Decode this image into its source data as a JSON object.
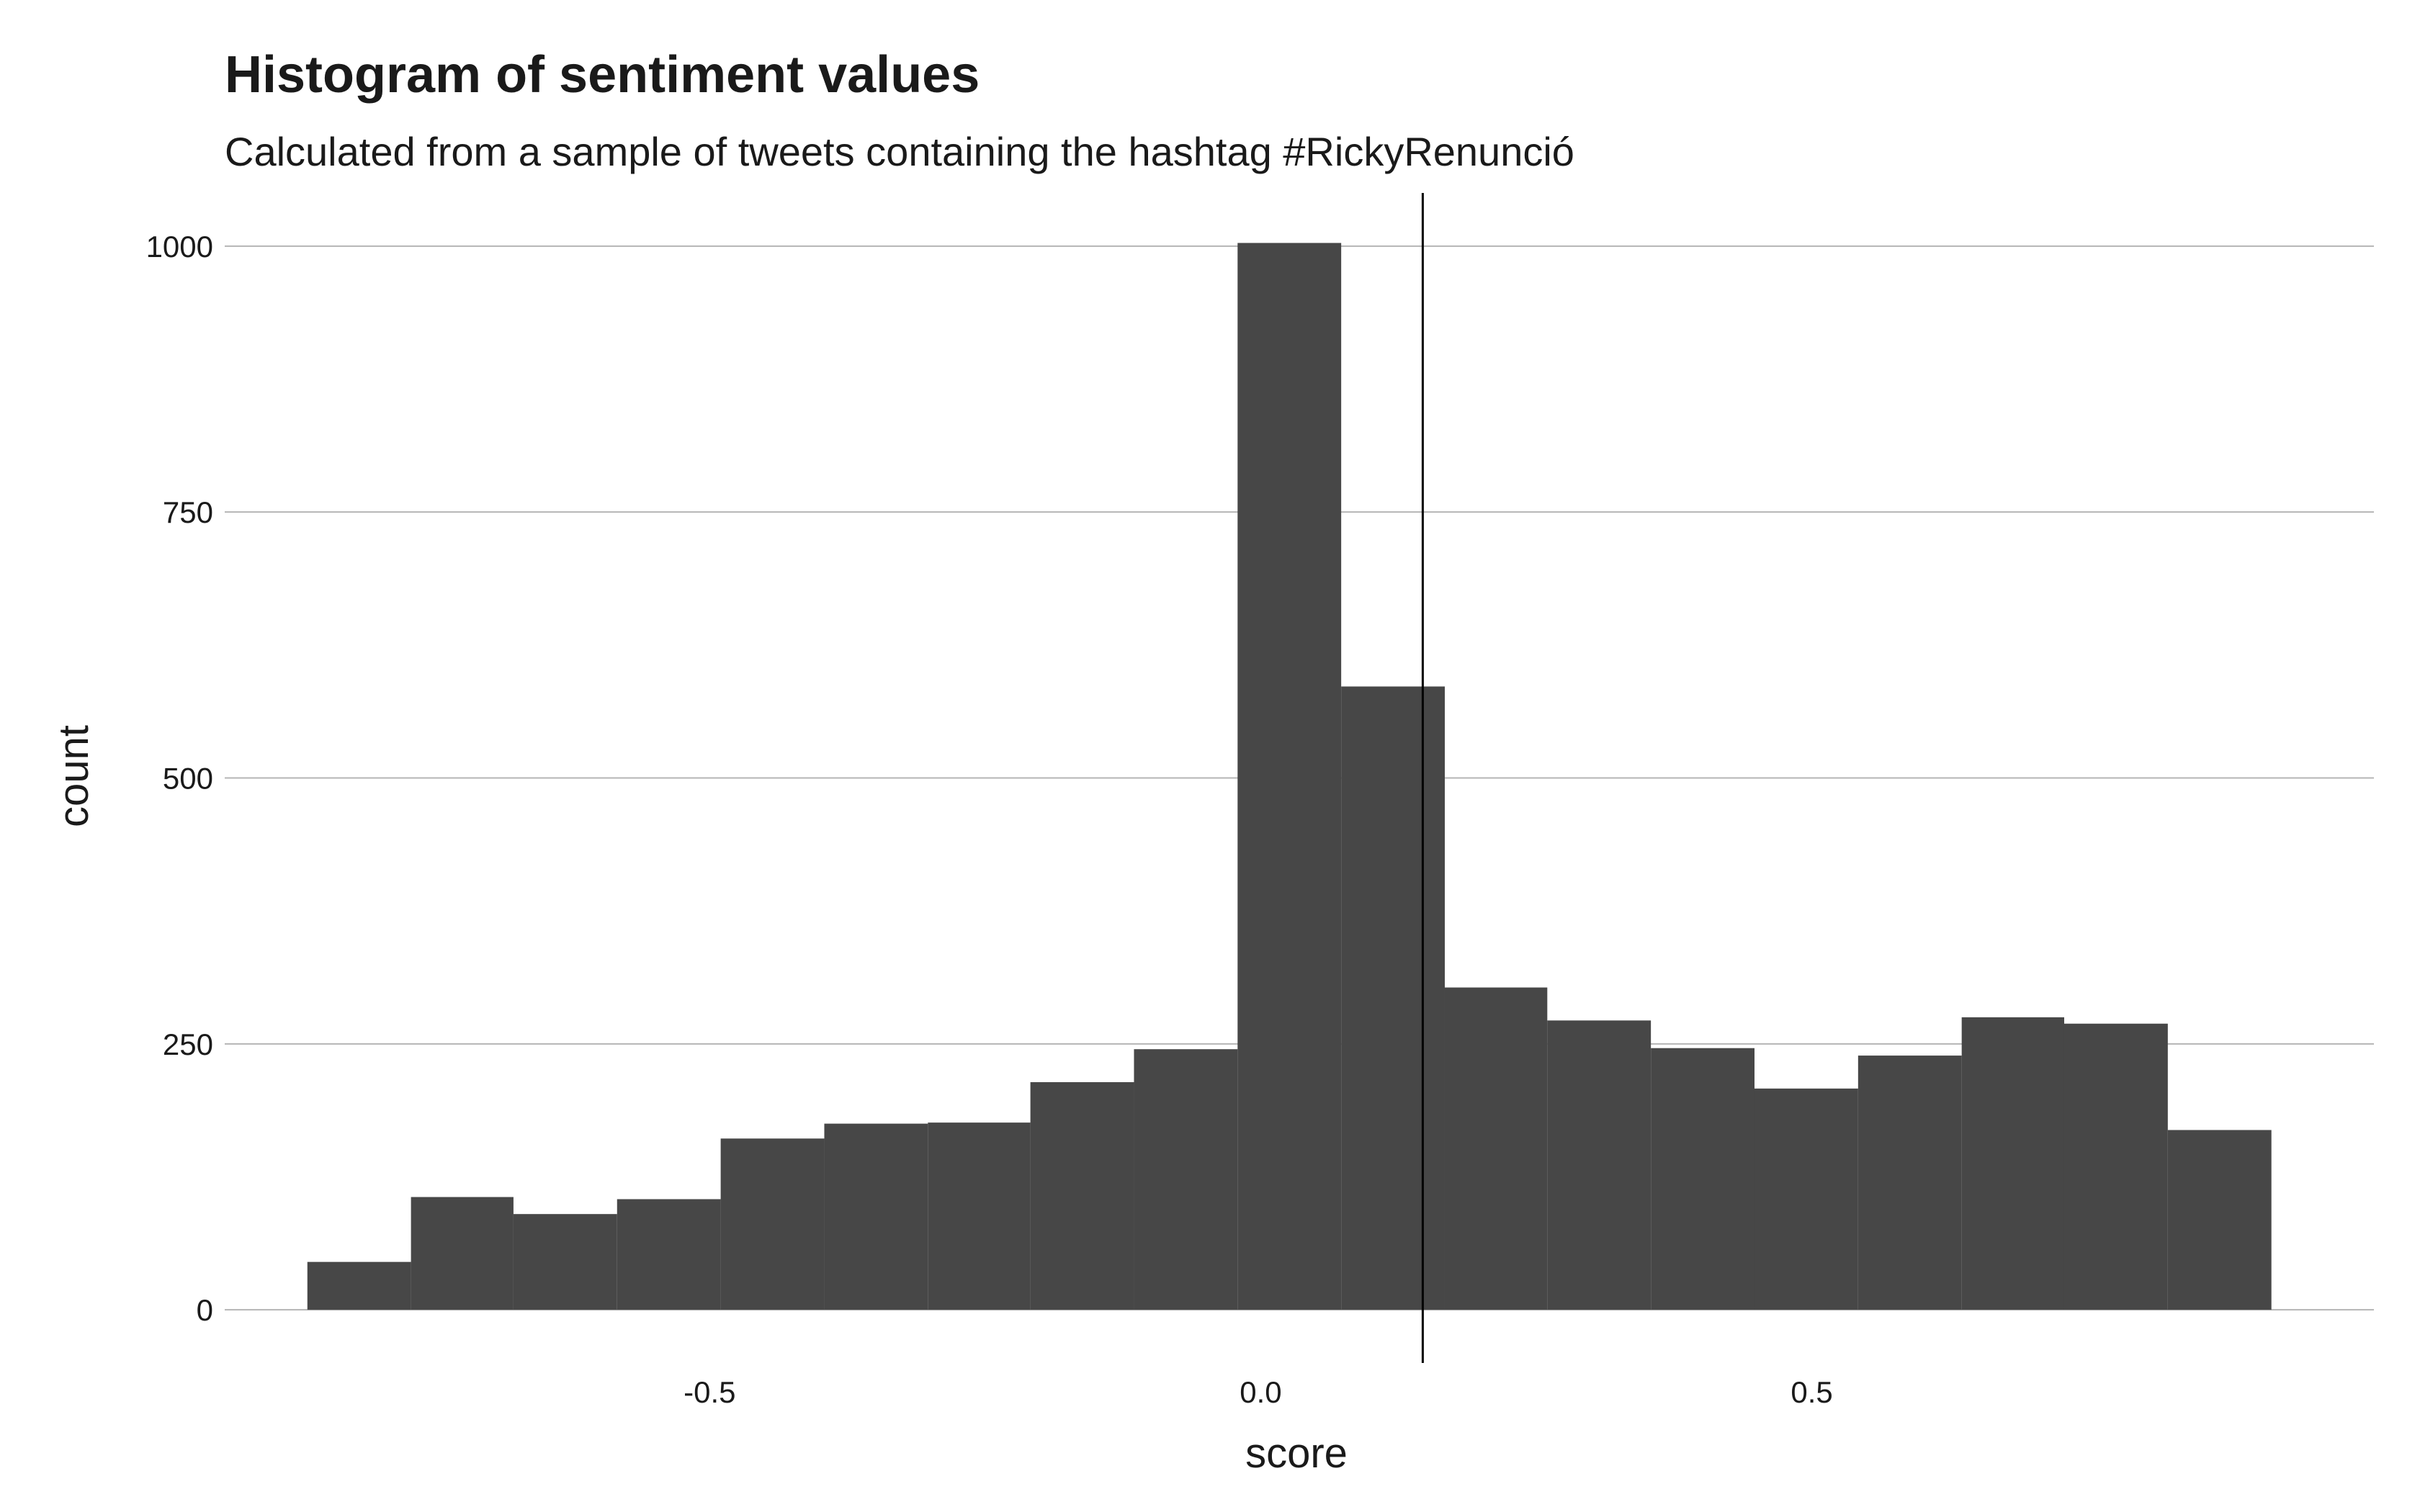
{
  "chart_data": {
    "type": "bar",
    "title": "Histogram of sentiment values",
    "subtitle": "Calculated from a sample of tweets containing the hashtag #RickyRenunció",
    "xlabel": "score",
    "ylabel": "count",
    "xlim": [
      -0.94,
      1.01
    ],
    "ylim": [
      -50,
      1050
    ],
    "x_ticks": [
      {
        "value": -0.5,
        "label": "-0.5"
      },
      {
        "value": 0.0,
        "label": "0.0"
      },
      {
        "value": 0.5,
        "label": "0.5"
      }
    ],
    "y_ticks": [
      {
        "value": 0,
        "label": "0"
      },
      {
        "value": 250,
        "label": "250"
      },
      {
        "value": 500,
        "label": "500"
      },
      {
        "value": 750,
        "label": "750"
      },
      {
        "value": 1000,
        "label": "1000"
      }
    ],
    "bins": [
      {
        "x0": -0.865,
        "x1": -0.771,
        "count": 45
      },
      {
        "x0": -0.771,
        "x1": -0.678,
        "count": 106
      },
      {
        "x0": -0.678,
        "x1": -0.584,
        "count": 90
      },
      {
        "x0": -0.584,
        "x1": -0.49,
        "count": 104
      },
      {
        "x0": -0.49,
        "x1": -0.396,
        "count": 161
      },
      {
        "x0": -0.396,
        "x1": -0.302,
        "count": 175
      },
      {
        "x0": -0.302,
        "x1": -0.209,
        "count": 176
      },
      {
        "x0": -0.209,
        "x1": -0.115,
        "count": 214
      },
      {
        "x0": -0.115,
        "x1": -0.021,
        "count": 245
      },
      {
        "x0": -0.021,
        "x1": 0.073,
        "count": 1003
      },
      {
        "x0": 0.073,
        "x1": 0.167,
        "count": 586
      },
      {
        "x0": 0.167,
        "x1": 0.26,
        "count": 303
      },
      {
        "x0": 0.26,
        "x1": 0.354,
        "count": 272
      },
      {
        "x0": 0.354,
        "x1": 0.448,
        "count": 246
      },
      {
        "x0": 0.448,
        "x1": 0.542,
        "count": 208
      },
      {
        "x0": 0.542,
        "x1": 0.636,
        "count": 239
      },
      {
        "x0": 0.636,
        "x1": 0.729,
        "count": 275
      },
      {
        "x0": 0.729,
        "x1": 0.823,
        "count": 269
      },
      {
        "x0": 0.823,
        "x1": 0.917,
        "count": 169
      }
    ],
    "reference_line": {
      "x": 0.147
    },
    "grid": "horizontal",
    "legend": "none",
    "colors": {
      "bar": "#474747",
      "grid": "#b5b5b5",
      "reference_line": "#000000",
      "background": "#ffffff"
    }
  }
}
